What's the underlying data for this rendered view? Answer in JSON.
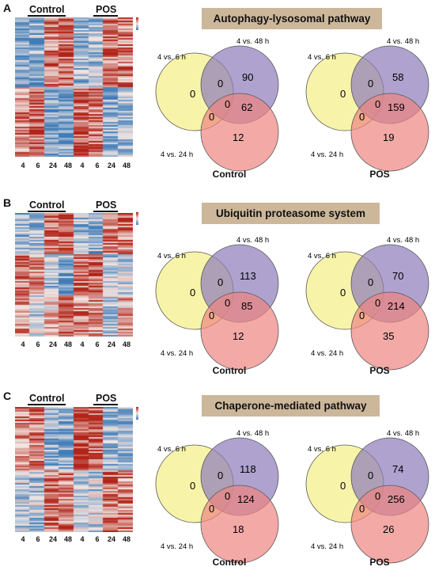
{
  "panels": [
    {
      "letter": "A",
      "group_labels": [
        "Control",
        "POS"
      ],
      "time_labels": [
        "4",
        "6",
        "24",
        "48",
        "4",
        "6",
        "24",
        "48"
      ],
      "pathway": "Autophagy-lysosomal pathway",
      "venns": [
        {
          "condition": "Control",
          "set_labels": [
            "4 vs. 6 h",
            "4 vs. 48 h",
            "4 vs. 24 h"
          ],
          "counts": {
            "only_6": "0",
            "only_48": "90",
            "only_24": "12",
            "6_48": "0",
            "6_24": "0",
            "48_24": "62",
            "all": "0"
          }
        },
        {
          "condition": "POS",
          "set_labels": [
            "4 vs. 6 h",
            "4 vs. 48 h",
            "4 vs. 24 h"
          ],
          "counts": {
            "only_6": "0",
            "only_48": "58",
            "only_24": "19",
            "6_48": "0",
            "6_24": "0",
            "48_24": "159",
            "all": "0"
          }
        }
      ]
    },
    {
      "letter": "B",
      "group_labels": [
        "Control",
        "POS"
      ],
      "time_labels": [
        "4",
        "6",
        "24",
        "48",
        "4",
        "6",
        "24",
        "48"
      ],
      "pathway": "Ubiquitin proteasome system",
      "venns": [
        {
          "condition": "Control",
          "set_labels": [
            "4 vs. 6 h",
            "4 vs. 48 h",
            "4 vs. 24 h"
          ],
          "counts": {
            "only_6": "0",
            "only_48": "113",
            "only_24": "12",
            "6_48": "0",
            "6_24": "0",
            "48_24": "85",
            "all": "0"
          }
        },
        {
          "condition": "POS",
          "set_labels": [
            "4 vs. 6 h",
            "4 vs. 48 h",
            "4 vs. 24 h"
          ],
          "counts": {
            "only_6": "0",
            "only_48": "70",
            "only_24": "35",
            "6_48": "0",
            "6_24": "0",
            "48_24": "214",
            "all": "0"
          }
        }
      ]
    },
    {
      "letter": "C",
      "group_labels": [
        "Control",
        "POS"
      ],
      "time_labels": [
        "4",
        "6",
        "24",
        "48",
        "4",
        "6",
        "24",
        "48"
      ],
      "pathway": "Chaperone-mediated pathway",
      "venns": [
        {
          "condition": "Control",
          "set_labels": [
            "4 vs. 6 h",
            "4 vs. 48 h",
            "4 vs. 24 h"
          ],
          "counts": {
            "only_6": "0",
            "only_48": "118",
            "only_24": "18",
            "6_48": "0",
            "6_24": "0",
            "48_24": "124",
            "all": "0"
          }
        },
        {
          "condition": "POS",
          "set_labels": [
            "4 vs. 6 h",
            "4 vs. 48 h",
            "4 vs. 24 h"
          ],
          "counts": {
            "only_6": "0",
            "only_48": "74",
            "only_24": "26",
            "6_48": "0",
            "6_24": "0",
            "48_24": "256",
            "all": "0"
          }
        }
      ]
    }
  ],
  "colors": {
    "set_6h": "#f3ef86",
    "set_48h": "#8d7ab9",
    "set_24h": "#ee8580",
    "heatmap_high": "#b22318",
    "heatmap_mid": "#f2e6e2",
    "heatmap_low": "#3f7cb8",
    "pathway_box": "#cdb79a"
  }
}
